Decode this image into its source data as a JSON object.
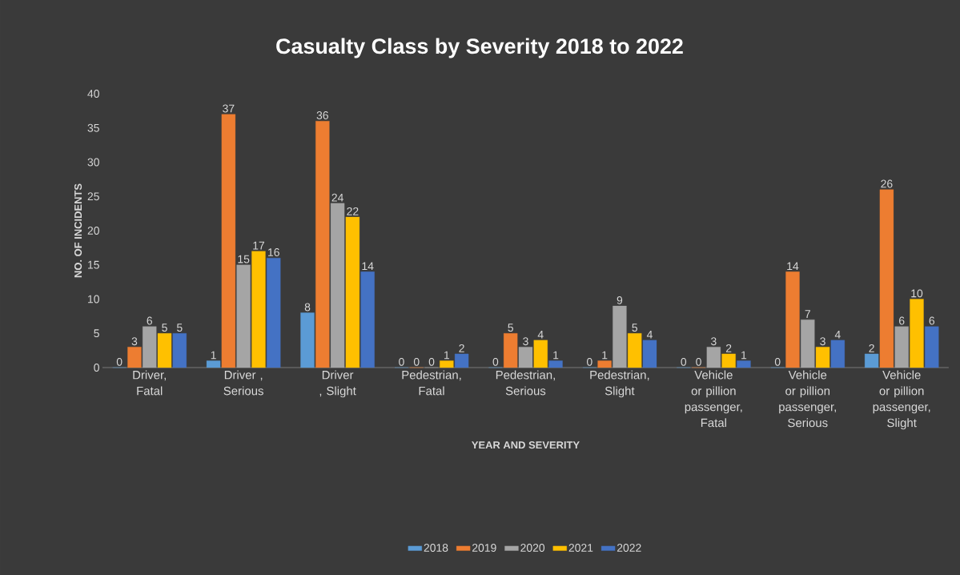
{
  "chart_data": {
    "type": "bar",
    "title": "Casualty Class by Severity 2018 to 2022",
    "xlabel": "YEAR AND SEVERITY",
    "ylabel": "NO. OF INCIDENTS",
    "categories": [
      "Driver, Fatal",
      "Driver , Serious",
      "Driver , Slight",
      "Pedestrian, Fatal",
      "Pedestrian, Serious",
      "Pedestrian, Slight",
      "Vehicle or pillion passenger, Fatal",
      "Vehicle or pillion passenger, Serious",
      "Vehicle or pillion passenger, Slight"
    ],
    "series": [
      {
        "name": "2018",
        "color": "#5b9bd5",
        "values": [
          0,
          1,
          8,
          0,
          0,
          0,
          0,
          0,
          2
        ]
      },
      {
        "name": "2019",
        "color": "#ed7d31",
        "values": [
          3,
          37,
          36,
          0,
          5,
          1,
          0,
          14,
          26
        ]
      },
      {
        "name": "2020",
        "color": "#a5a5a5",
        "values": [
          6,
          15,
          24,
          0,
          3,
          9,
          3,
          7,
          6
        ]
      },
      {
        "name": "2021",
        "color": "#ffc000",
        "values": [
          5,
          17,
          22,
          1,
          4,
          5,
          2,
          3,
          10
        ]
      },
      {
        "name": "2022",
        "color": "#4472c4",
        "values": [
          5,
          16,
          14,
          2,
          1,
          4,
          1,
          4,
          6
        ]
      }
    ],
    "ylim": [
      0,
      40
    ],
    "yticks": [
      0,
      5,
      10,
      15,
      20,
      25,
      30,
      35,
      40
    ],
    "data_labels": true,
    "legend": "bottom"
  }
}
